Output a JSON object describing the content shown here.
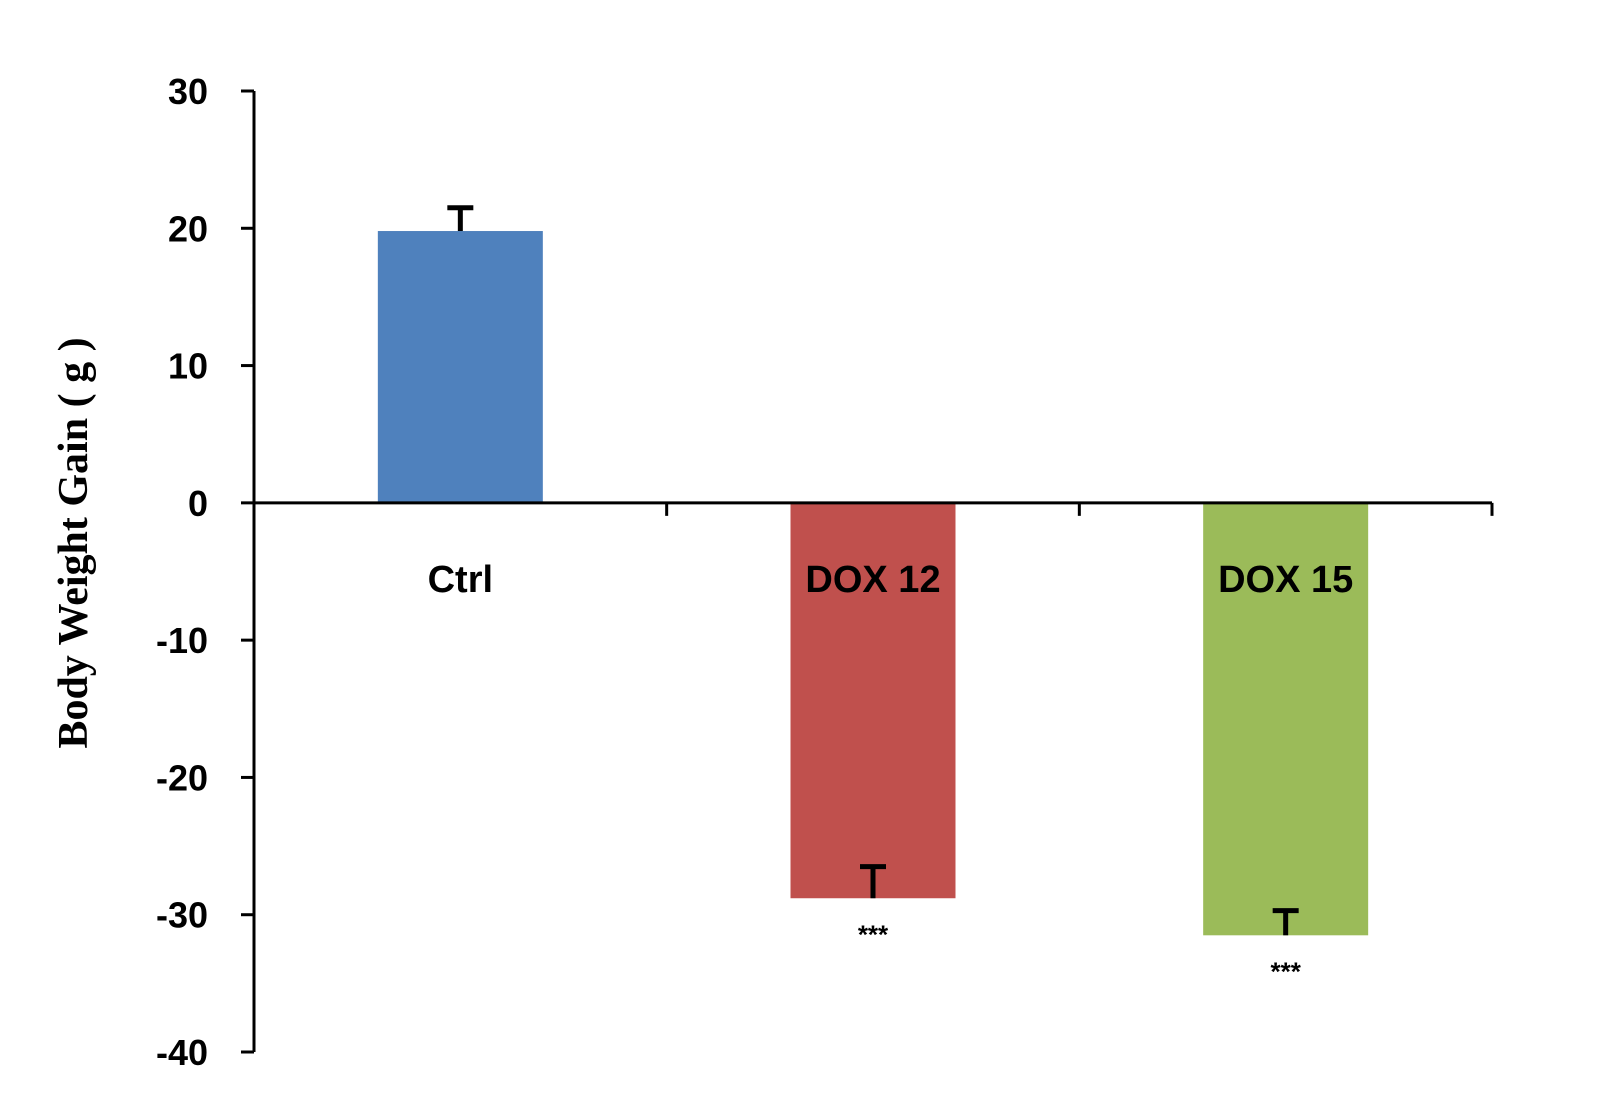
{
  "chart_data": {
    "type": "bar",
    "title": "",
    "xlabel": "",
    "ylabel": "Body Weight Gain ( g )",
    "ylim": [
      -40,
      30
    ],
    "yticks": [
      30,
      20,
      10,
      0,
      -10,
      -20,
      -30,
      -40
    ],
    "grid": false,
    "categories": [
      "Ctrl",
      "DOX 12",
      "DOX 15"
    ],
    "values": [
      19.8,
      -28.8,
      -31.5
    ],
    "errors": [
      1.7,
      2.3,
      1.8
    ],
    "colors": [
      "#4F81BD",
      "#C0504D",
      "#9BBB59"
    ],
    "annotations": [
      "",
      "***",
      "***"
    ]
  }
}
